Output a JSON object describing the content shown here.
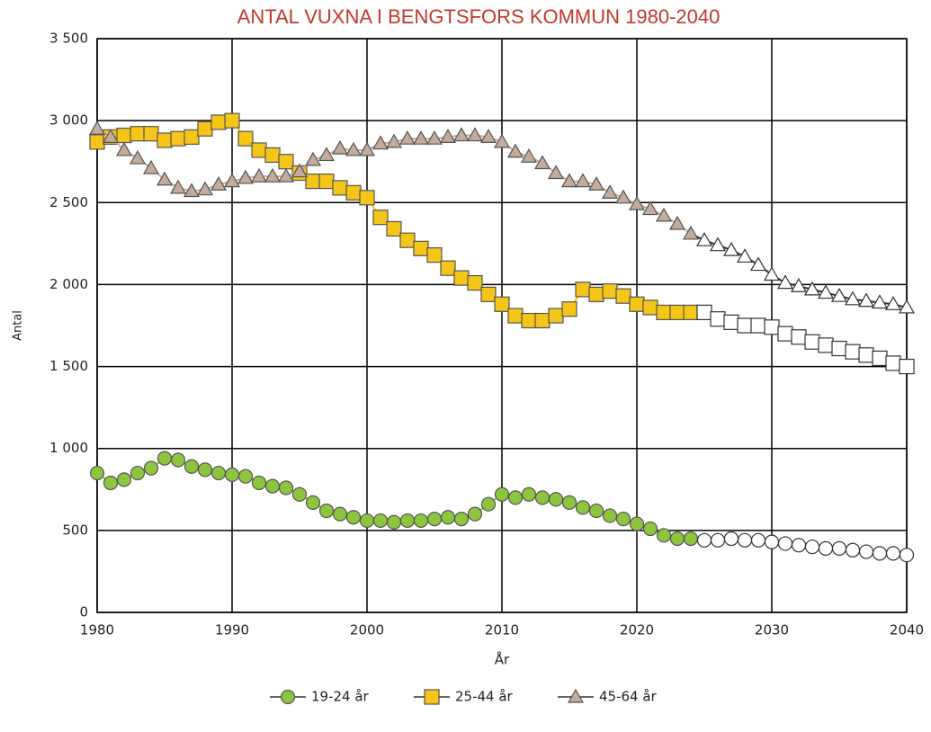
{
  "chart_data": {
    "type": "line",
    "title": "ANTAL VUXNA I BENGTSFORS KOMMUN 1980-2040",
    "x_label": "År",
    "y_label": "Antal",
    "x": [
      1980,
      1981,
      1982,
      1983,
      1984,
      1985,
      1986,
      1987,
      1988,
      1989,
      1990,
      1991,
      1992,
      1993,
      1994,
      1995,
      1996,
      1997,
      1998,
      1999,
      2000,
      2001,
      2002,
      2003,
      2004,
      2005,
      2006,
      2007,
      2008,
      2009,
      2010,
      2011,
      2012,
      2013,
      2014,
      2015,
      2016,
      2017,
      2018,
      2019,
      2020,
      2021,
      2022,
      2023,
      2024,
      2025,
      2026,
      2027,
      2028,
      2029,
      2030,
      2031,
      2032,
      2033,
      2034,
      2035,
      2036,
      2037,
      2038,
      2039,
      2040
    ],
    "forecast_from": 2025,
    "series": [
      {
        "name": "19-24 år",
        "color": "#8cc63e",
        "marker": "circle",
        "values": [
          850,
          790,
          810,
          850,
          880,
          940,
          930,
          890,
          870,
          850,
          840,
          830,
          790,
          770,
          760,
          720,
          670,
          620,
          600,
          580,
          560,
          560,
          550,
          560,
          560,
          570,
          580,
          570,
          600,
          660,
          720,
          700,
          720,
          700,
          690,
          670,
          640,
          620,
          590,
          570,
          540,
          510,
          470,
          450,
          450,
          440,
          440,
          450,
          440,
          440,
          430,
          420,
          410,
          400,
          390,
          390,
          380,
          370,
          360,
          360,
          350
        ]
      },
      {
        "name": "25-44 år",
        "color": "#f5c518",
        "marker": "square",
        "values": [
          2870,
          2900,
          2910,
          2920,
          2920,
          2880,
          2890,
          2900,
          2950,
          2990,
          3000,
          2890,
          2820,
          2790,
          2750,
          2680,
          2630,
          2630,
          2590,
          2560,
          2530,
          2410,
          2340,
          2270,
          2220,
          2180,
          2100,
          2040,
          2010,
          1940,
          1880,
          1810,
          1780,
          1780,
          1810,
          1850,
          1970,
          1940,
          1960,
          1930,
          1880,
          1860,
          1830,
          1830,
          1830,
          1830,
          1790,
          1770,
          1750,
          1750,
          1740,
          1700,
          1680,
          1650,
          1630,
          1610,
          1590,
          1570,
          1550,
          1520,
          1500
        ]
      },
      {
        "name": "45-64 år",
        "color": "#c4ab9b",
        "marker": "triangle",
        "values": [
          2950,
          2900,
          2820,
          2770,
          2710,
          2640,
          2590,
          2570,
          2580,
          2610,
          2630,
          2650,
          2660,
          2660,
          2660,
          2690,
          2760,
          2790,
          2830,
          2820,
          2820,
          2860,
          2870,
          2890,
          2890,
          2890,
          2900,
          2910,
          2910,
          2900,
          2870,
          2810,
          2780,
          2740,
          2680,
          2630,
          2630,
          2610,
          2560,
          2530,
          2490,
          2460,
          2420,
          2370,
          2310,
          2270,
          2240,
          2210,
          2170,
          2120,
          2060,
          2010,
          1990,
          1970,
          1950,
          1930,
          1910,
          1900,
          1890,
          1880,
          1860
        ]
      }
    ],
    "xlim": [
      1980,
      2040
    ],
    "xticks": [
      1980,
      1990,
      2000,
      2010,
      2020,
      2030,
      2040
    ],
    "ylim": [
      0,
      3500
    ],
    "yticks": [
      0,
      500,
      {
        "value": 1000,
        "label": "1 000"
      },
      {
        "value": 1500,
        "label": "1 500"
      },
      {
        "value": 2000,
        "label": "2 000"
      },
      {
        "value": 2500,
        "label": "2 500"
      },
      {
        "value": 3000,
        "label": "3 000"
      },
      {
        "value": 3500,
        "label": "3 500"
      }
    ],
    "grid": true
  }
}
